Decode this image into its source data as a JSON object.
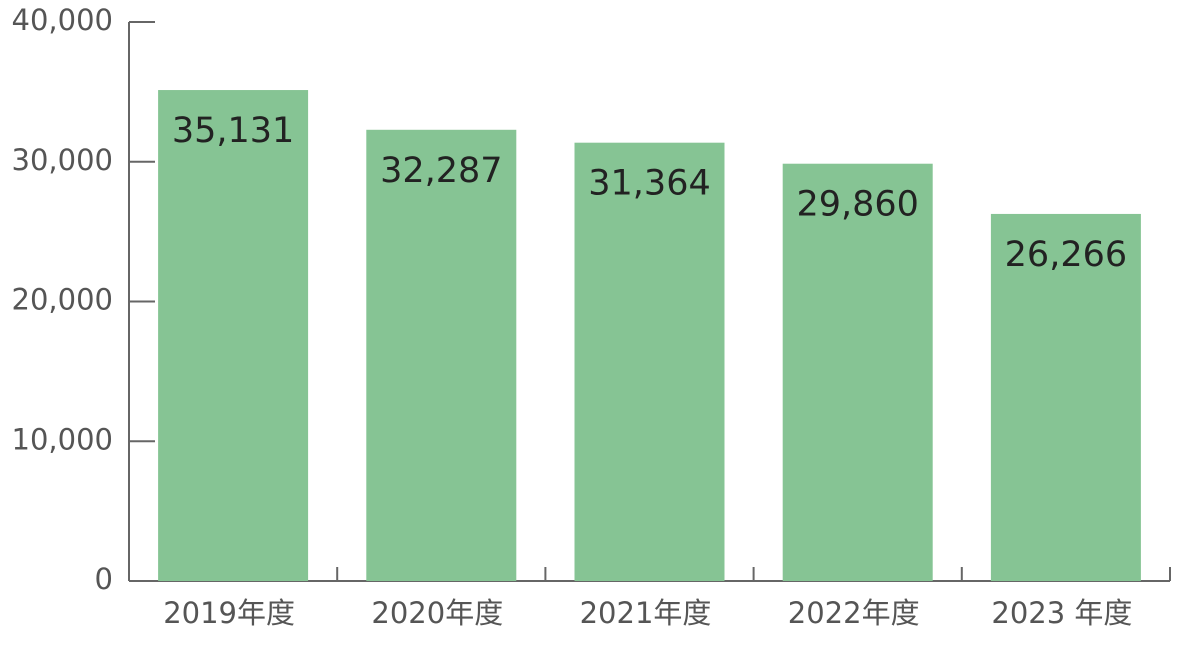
{
  "chart_data": {
    "type": "bar",
    "categories": [
      "2019年度",
      "2020年度",
      "2021年度",
      "2022年度",
      "2023 年度"
    ],
    "values": [
      35131,
      32287,
      31364,
      29860,
      26266
    ],
    "value_labels": [
      "35,131",
      "32,287",
      "31,364",
      "29,860",
      "26,266"
    ],
    "color": "#86c494",
    "ylim": [
      0,
      40000
    ],
    "yticks": [
      0,
      {
        "value": 10000,
        "label": "10,000"
      },
      {
        "value": 20000,
        "label": "20,000"
      },
      {
        "value": 30000,
        "label": "30,000"
      },
      {
        "value": 40000,
        "label": "40,000"
      }
    ],
    "grid": false
  }
}
